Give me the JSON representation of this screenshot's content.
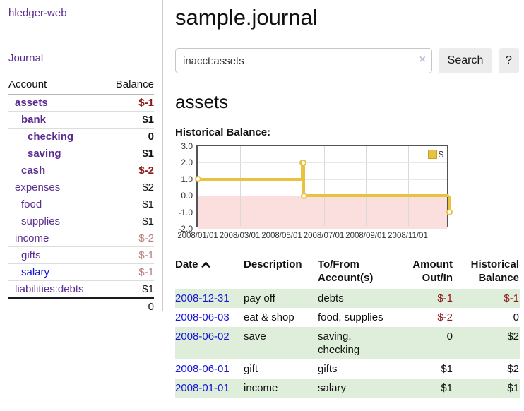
{
  "app": {
    "brand": "hledger-web",
    "nav_journal": "Journal"
  },
  "sidebar": {
    "header": {
      "account": "Account",
      "balance": "Balance"
    },
    "accounts": [
      {
        "name": "assets",
        "balance": "$-1",
        "depth": 1,
        "bold": true,
        "neg": "strong",
        "link": "purple"
      },
      {
        "name": "bank",
        "balance": "$1",
        "depth": 2,
        "bold": true,
        "neg": "none",
        "link": "purple"
      },
      {
        "name": "checking",
        "balance": "0",
        "depth": 3,
        "bold": true,
        "neg": "none",
        "link": "purple"
      },
      {
        "name": "saving",
        "balance": "$1",
        "depth": 3,
        "bold": true,
        "neg": "none",
        "link": "purple"
      },
      {
        "name": "cash",
        "balance": "$-2",
        "depth": 2,
        "bold": true,
        "neg": "strong",
        "link": "purple"
      },
      {
        "name": "expenses",
        "balance": "$2",
        "depth": 1,
        "bold": false,
        "neg": "none",
        "link": "purple"
      },
      {
        "name": "food",
        "balance": "$1",
        "depth": 2,
        "bold": false,
        "neg": "none",
        "link": "purple"
      },
      {
        "name": "supplies",
        "balance": "$1",
        "depth": 2,
        "bold": false,
        "neg": "none",
        "link": "purple"
      },
      {
        "name": "income",
        "balance": "$-2",
        "depth": 1,
        "bold": false,
        "neg": "soft",
        "link": "purple"
      },
      {
        "name": "gifts",
        "balance": "$-1",
        "depth": 2,
        "bold": false,
        "neg": "soft",
        "link": "purple"
      },
      {
        "name": "salary",
        "balance": "$-1",
        "depth": 2,
        "bold": false,
        "neg": "soft",
        "link": "blue"
      },
      {
        "name": "liabilities:debts",
        "balance": "$1",
        "depth": 1,
        "bold": false,
        "neg": "none",
        "link": "purple"
      }
    ],
    "total": "0"
  },
  "header": {
    "title": "sample.journal"
  },
  "search": {
    "value": "inacct:assets",
    "clear_icon": "×",
    "button_label": "Search",
    "help_label": "?"
  },
  "main": {
    "heading": "assets",
    "chart_label": "Historical Balance:"
  },
  "chart_data": {
    "type": "line",
    "title": "Historical Balance:",
    "step": true,
    "series": [
      {
        "name": "$",
        "points": [
          [
            "2008-01-01",
            1
          ],
          [
            "2008-06-01",
            2
          ],
          [
            "2008-06-02",
            2
          ],
          [
            "2008-06-03",
            0
          ],
          [
            "2008-12-31",
            -1
          ]
        ]
      }
    ],
    "x_domain": [
      "2008-01-01",
      "2009-01-01"
    ],
    "x_tick_labels": [
      "2008/01/01",
      "2008/03/01",
      "2008/05/01",
      "2008/07/01",
      "2008/09/01",
      "2008/11/01"
    ],
    "y_tick_labels": [
      "3.0",
      "2.0",
      "1.0",
      "0.0",
      "-1.0",
      "-2.0"
    ],
    "ylim": [
      -2,
      3
    ],
    "grid": true,
    "legend": {
      "label": "$",
      "position": "top-right"
    },
    "colors": {
      "line": "#e9c241",
      "negative_region": "#fbdede",
      "zero_line": "#8b0000"
    }
  },
  "register": {
    "headers": {
      "date": "Date",
      "description": "Description",
      "accounts": "To/From Account(s)",
      "amount": "Amount Out/In",
      "balance": "Historical Balance"
    },
    "sort": {
      "column": "Date",
      "direction": "ascending"
    },
    "rows": [
      {
        "date": "2008-12-31",
        "description": "pay off",
        "accounts": "debts",
        "amount": "$-1",
        "balance": "$-1"
      },
      {
        "date": "2008-06-03",
        "description": "eat & shop",
        "accounts": "food, supplies",
        "amount": "$-2",
        "balance": "0"
      },
      {
        "date": "2008-06-02",
        "description": "save",
        "accounts": "saving, checking",
        "amount": "0",
        "balance": "$2"
      },
      {
        "date": "2008-06-01",
        "description": "gift",
        "accounts": "gifts",
        "amount": "$1",
        "balance": "$2"
      },
      {
        "date": "2008-01-01",
        "description": "income",
        "accounts": "salary",
        "amount": "$1",
        "balance": "$1"
      }
    ]
  },
  "colors": {
    "link_purple": "#5b2d91",
    "link_blue": "#1414d6",
    "negative_strong": "#8b1a1a",
    "negative_soft": "#b97f7f",
    "row_stripe_green": "#dfeeda",
    "chart_line_gold": "#e9c241",
    "chart_negative_pink": "#fbdede",
    "chart_zero_line": "#8b0000"
  }
}
